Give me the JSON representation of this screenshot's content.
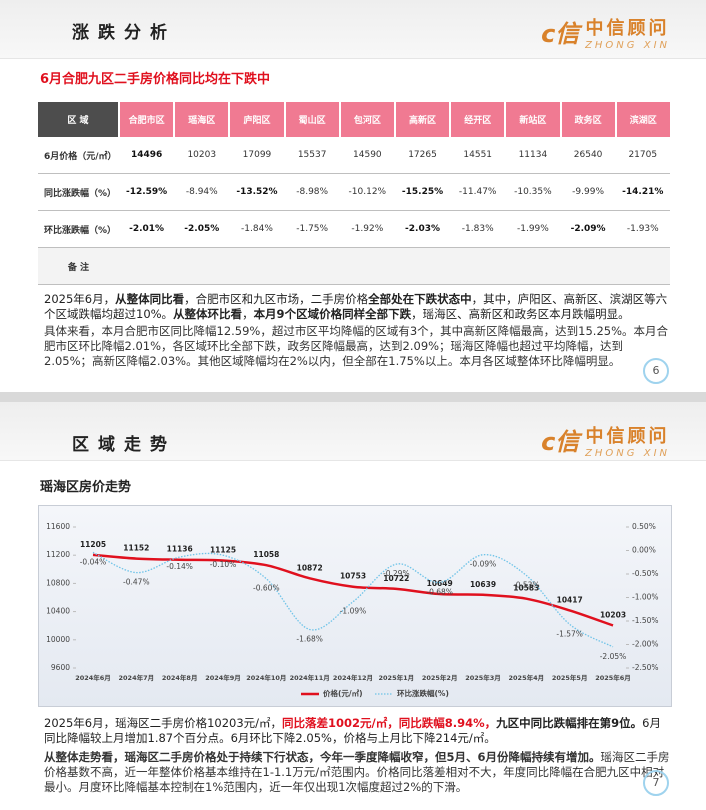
{
  "slide1": {
    "header": {
      "title": "涨跌分析",
      "logo": "中信顾问",
      "logo_en": "ZHONG XIN"
    },
    "subtitle": "6月合肥九区二手房价格同比均在下跌中",
    "table": {
      "header": [
        "区 域",
        "合肥市区",
        "瑶海区",
        "庐阳区",
        "蜀山区",
        "包河区",
        "高新区",
        "经开区",
        "新站区",
        "政务区",
        "滨湖区"
      ],
      "rows": [
        [
          "6月价格（元/㎡）",
          "14496",
          "10203",
          "17099",
          "15537",
          "14590",
          "17265",
          "14551",
          "11134",
          "26540",
          "21705"
        ],
        [
          "同比涨跌幅（%）",
          "-12.59%",
          "-8.94%",
          "-13.52%",
          "-8.98%",
          "-10.12%",
          "-15.25%",
          "-11.47%",
          "-10.35%",
          "-9.99%",
          "-14.21%"
        ],
        [
          "环比涨跌幅（%）",
          "-2.01%",
          "-2.05%",
          "-1.84%",
          "-1.75%",
          "-1.92%",
          "-2.03%",
          "-1.83%",
          "-1.99%",
          "-2.09%",
          "-1.93%"
        ],
        [
          "备 注"
        ]
      ]
    },
    "paragraphs": [
      [
        {
          "text": "2025年6月，"
        },
        {
          "text": "从整体同比看",
          "bold": true
        },
        {
          "text": "，合肥市区和九区市场，二手房价格"
        },
        {
          "text": "全部处在下跌状态中",
          "bold": true
        },
        {
          "text": "，其中，庐阳区、高新区、滨湖区等六个区域跌幅均超过10%。"
        },
        {
          "text": "从整体环比看",
          "bold": true
        },
        {
          "text": "，"
        },
        {
          "text": "本月9个区域价格同样全部下跌",
          "bold": true
        },
        {
          "text": "，瑶海区、高新区和政务区本月跌幅明显。"
        }
      ],
      [
        {
          "text": "具体来看，本月合肥市区同比降幅12.59%，超过市区平均降幅的区域有3个，其中高新区降幅最高，达到15.25%。本月合肥市区环比降幅2.01%，各区域环比全部下跌，政务区降幅最高，达到2.09%；瑶海区降幅也超过平均降幅，达到2.05%；高新区降幅2.03%。其他区域降幅均在2%以内，但全部在1.75%以上。本月各区域整体环比降幅明显。"
        }
      ]
    ],
    "page": "6"
  },
  "slide2": {
    "header": {
      "title": "区域走势",
      "logo": "中信顾问",
      "logo_en": "ZHONG XIN"
    },
    "subtitle": "瑶海区房价走势",
    "paragraphs": [
      [
        {
          "text": "2025年6月，瑶海区二手房价格10203元/㎡，"
        },
        {
          "text": "同比落差1002元/㎡，同比跌幅8.94%，",
          "bold": true,
          "color": "#e0101e"
        },
        {
          "text": "九区中同比跌幅排在第9位。",
          "bold": true
        },
        {
          "text": "6月同比降幅较上月增加1.87个百分点。6月环比下降2.05%，价格与上月比下降214元/㎡。"
        }
      ],
      [
        {
          "text": "从整体走势看，瑶海区二手房价格处于持续下行状态，今年一季度降幅收窄，但5月、6月份降幅持续有增加。",
          "bold": true
        },
        {
          "text": "瑶海区二手房价格基数不高，近一年整体价格基本维持在1-1.1万元/㎡范围内。价格同比落差相对不大，年度同比降幅在合肥九区中相对最小。月度环比降幅基本控制在1%范围内，近一年仅出现1次幅度超过2%的下滑。"
        }
      ]
    ],
    "page": "7"
  },
  "chart_data": {
    "type": "line",
    "categories": [
      "2024年6月",
      "2024年7月",
      "2024年8月",
      "2024年9月",
      "2024年10月",
      "2024年11月",
      "2024年12月",
      "2025年1月",
      "2025年2月",
      "2025年3月",
      "2025年4月",
      "2025年5月",
      "2025年6月"
    ],
    "series": [
      {
        "name": "价格(元/㎡)",
        "color": "#e0101e",
        "values": [
          11205,
          11152,
          11136,
          11125,
          11058,
          10872,
          10753,
          10722,
          10649,
          10639,
          10583,
          10417,
          10203
        ]
      },
      {
        "name": "环比涨跌幅(%)",
        "color": "#6ec3e8",
        "axis": "y2",
        "dashed": true,
        "values": [
          -0.04,
          -0.47,
          -0.14,
          -0.1,
          -0.6,
          -1.68,
          -1.09,
          -0.29,
          -0.68,
          -0.09,
          -0.53,
          -1.57,
          -2.05
        ],
        "value_labels": [
          "-0.04%",
          "-0.47%",
          "-0.14%",
          "-0.10%",
          "-0.60%",
          "-1.68%",
          "-1.09%",
          "-0.29%",
          "-0.68%",
          "-0.09%",
          "-0.53%",
          "-1.57%",
          "-2.05%"
        ]
      }
    ],
    "ylim": [
      9600,
      11600
    ],
    "yticks": [
      9600,
      10000,
      10400,
      10800,
      11200,
      11600
    ],
    "y2lim": [
      -2.5,
      0.5
    ],
    "y2ticks": [
      {
        "value": 0.5,
        "label": "0.50%"
      },
      {
        "value": 0,
        "label": "0.00%"
      },
      {
        "value": -0.5,
        "label": "-0.50%"
      },
      {
        "value": -1,
        "label": "-1.00%"
      },
      {
        "value": -1.5,
        "label": "-1.50%"
      },
      {
        "value": -2,
        "label": "-2.00%"
      },
      {
        "value": -2.5,
        "label": "-2.50%"
      }
    ],
    "legend": "bottom"
  }
}
